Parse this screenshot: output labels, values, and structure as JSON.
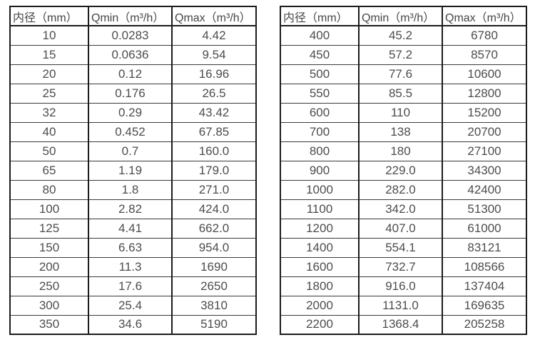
{
  "colors": {
    "background": "#ffffff",
    "border_outer": "#1c1c1c",
    "border_row_line": "#3a3a3a",
    "header_text": "#474747",
    "cell_text": "#4d4d4d"
  },
  "tables": [
    {
      "id": "small-diameter-flow-table",
      "headers": [
        "内径（mm）",
        "Qmin（m³/h）",
        "Qmax（m³/h）"
      ],
      "rows": [
        [
          "10",
          "0.0283",
          "4.42"
        ],
        [
          "15",
          "0.0636",
          "9.54"
        ],
        [
          "20",
          "0.12",
          "16.96"
        ],
        [
          "25",
          "0.176",
          "26.5"
        ],
        [
          "32",
          "0.29",
          "43.42"
        ],
        [
          "40",
          "0.452",
          "67.85"
        ],
        [
          "50",
          "0.7",
          "160.0"
        ],
        [
          "65",
          "1.19",
          "179.0"
        ],
        [
          "80",
          "1.8",
          "271.0"
        ],
        [
          "100",
          "2.82",
          "424.0"
        ],
        [
          "125",
          "4.41",
          "662.0"
        ],
        [
          "150",
          "6.63",
          "954.0"
        ],
        [
          "200",
          "11.3",
          "1690"
        ],
        [
          "250",
          "17.6",
          "2650"
        ],
        [
          "300",
          "25.4",
          "3810"
        ],
        [
          "350",
          "34.6",
          "5190"
        ]
      ]
    },
    {
      "id": "large-diameter-flow-table",
      "headers": [
        "内径（mm）",
        "Qmin（m³/h）",
        "Qmax（m³/h）"
      ],
      "rows": [
        [
          "400",
          "45.2",
          "6780"
        ],
        [
          "450",
          "57.2",
          "8570"
        ],
        [
          "500",
          "77.6",
          "10600"
        ],
        [
          "550",
          "85.5",
          "12800"
        ],
        [
          "600",
          "110",
          "15200"
        ],
        [
          "700",
          "138",
          "20700"
        ],
        [
          "800",
          "180",
          "27100"
        ],
        [
          "900",
          "229.0",
          "34300"
        ],
        [
          "1000",
          "282.0",
          "42400"
        ],
        [
          "1100",
          "342.0",
          "51300"
        ],
        [
          "1200",
          "407.0",
          "61000"
        ],
        [
          "1400",
          "554.1",
          "83121"
        ],
        [
          "1600",
          "732.7",
          "108566"
        ],
        [
          "1800",
          "916.0",
          "137404"
        ],
        [
          "2000",
          "1131.0",
          "169635"
        ],
        [
          "2200",
          "1368.4",
          "205258"
        ]
      ]
    }
  ]
}
